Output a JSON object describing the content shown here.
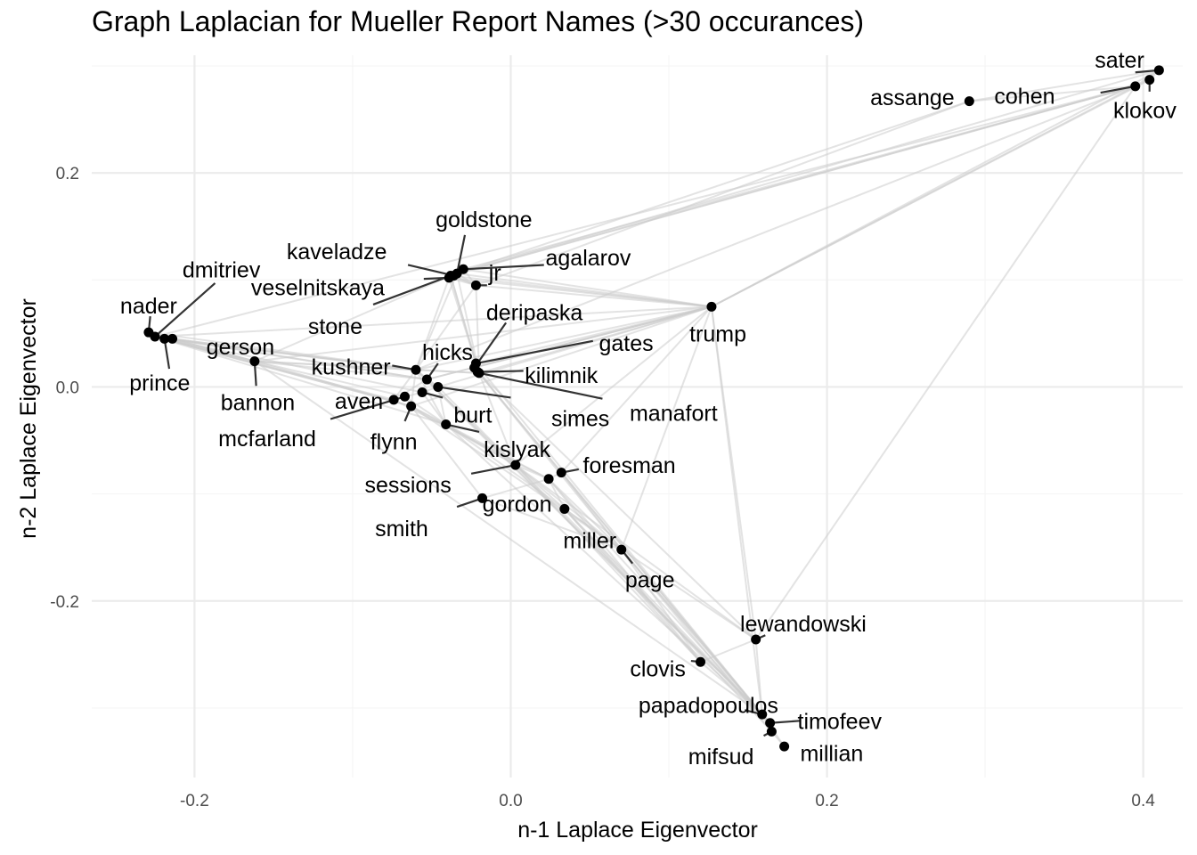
{
  "chart_data": {
    "type": "scatter",
    "title": "Graph Laplacian for Mueller Report Names (>30 occurances)",
    "xlabel": "n-1 Laplace Eigenvector",
    "ylabel": "n-2 Laplace Eigenvector",
    "xlim": [
      -0.265,
      0.425
    ],
    "ylim": [
      -0.365,
      0.31
    ],
    "x_ticks": [
      -0.2,
      0.0,
      0.2,
      0.4
    ],
    "x_tick_labels": [
      "-0.2",
      "0.0",
      "0.2",
      "0.4"
    ],
    "y_ticks": [
      -0.2,
      0.0,
      0.2
    ],
    "y_tick_labels": [
      "-0.2",
      "0.0",
      "0.2"
    ],
    "grid": true,
    "colors": {
      "point": "#000000",
      "edge": "#cccccc",
      "grid_major": "#ebebeb",
      "grid_minor": "#f5f5f5",
      "leader": "#333333"
    },
    "points": [
      {
        "name": "sater",
        "x": 0.41,
        "y": 0.296
      },
      {
        "name": "klokov",
        "x": 0.404,
        "y": 0.287
      },
      {
        "name": "cohen",
        "x": 0.395,
        "y": 0.281
      },
      {
        "name": "assange",
        "x": 0.29,
        "y": 0.267
      },
      {
        "name": "trump",
        "x": 0.127,
        "y": 0.075
      },
      {
        "name": "goldstone",
        "x": -0.034,
        "y": 0.106
      },
      {
        "name": "kaveladze",
        "x": -0.036,
        "y": 0.104
      },
      {
        "name": "agalarov",
        "x": -0.03,
        "y": 0.11
      },
      {
        "name": "veselnitskaya",
        "x": -0.039,
        "y": 0.102
      },
      {
        "name": "jr",
        "x": -0.022,
        "y": 0.095
      },
      {
        "name": "stone",
        "x": -0.038,
        "y": 0.104
      },
      {
        "name": "deripaska",
        "x": -0.023,
        "y": 0.018
      },
      {
        "name": "gates",
        "x": -0.022,
        "y": 0.022
      },
      {
        "name": "kilimnik",
        "x": -0.021,
        "y": 0.014
      },
      {
        "name": "manafort",
        "x": -0.02,
        "y": 0.013
      },
      {
        "name": "dmitriev",
        "x": -0.225,
        "y": 0.047
      },
      {
        "name": "nader",
        "x": -0.229,
        "y": 0.051
      },
      {
        "name": "prince",
        "x": -0.219,
        "y": 0.045
      },
      {
        "name": "gerson",
        "x": -0.214,
        "y": 0.045
      },
      {
        "name": "bannon",
        "x": -0.162,
        "y": 0.024
      },
      {
        "name": "kushner",
        "x": -0.06,
        "y": 0.016
      },
      {
        "name": "hicks",
        "x": -0.053,
        "y": 0.007
      },
      {
        "name": "simes",
        "x": -0.046,
        "y": 0.0
      },
      {
        "name": "burt",
        "x": -0.056,
        "y": -0.005
      },
      {
        "name": "aven",
        "x": -0.074,
        "y": -0.012
      },
      {
        "name": "mcfarland",
        "x": -0.067,
        "y": -0.009
      },
      {
        "name": "flynn",
        "x": -0.063,
        "y": -0.018
      },
      {
        "name": "kislyak",
        "x": -0.041,
        "y": -0.035
      },
      {
        "name": "sessions",
        "x": 0.003,
        "y": -0.073
      },
      {
        "name": "foresman",
        "x": 0.032,
        "y": -0.08
      },
      {
        "name": "gordon",
        "x": 0.024,
        "y": -0.086
      },
      {
        "name": "smith",
        "x": -0.018,
        "y": -0.104
      },
      {
        "name": "miller",
        "x": 0.034,
        "y": -0.114
      },
      {
        "name": "page",
        "x": 0.07,
        "y": -0.152
      },
      {
        "name": "lewandowski",
        "x": 0.155,
        "y": -0.236
      },
      {
        "name": "clovis",
        "x": 0.12,
        "y": -0.257
      },
      {
        "name": "papadopoulos",
        "x": 0.159,
        "y": -0.306
      },
      {
        "name": "timofeev",
        "x": 0.164,
        "y": -0.314
      },
      {
        "name": "mifsud",
        "x": 0.165,
        "y": -0.322
      },
      {
        "name": "millian",
        "x": 0.173,
        "y": -0.336
      }
    ],
    "edges": [
      [
        "nader",
        "dmitriev"
      ],
      [
        "nader",
        "prince"
      ],
      [
        "nader",
        "gerson"
      ],
      [
        "nader",
        "bannon"
      ],
      [
        "nader",
        "kushner"
      ],
      [
        "dmitriev",
        "prince"
      ],
      [
        "dmitriev",
        "gerson"
      ],
      [
        "dmitriev",
        "kushner"
      ],
      [
        "dmitriev",
        "aven"
      ],
      [
        "dmitriev",
        "trump"
      ],
      [
        "dmitriev",
        "cohen"
      ],
      [
        "dmitriev",
        "bannon"
      ],
      [
        "dmitriev",
        "flynn"
      ],
      [
        "dmitriev",
        "hicks"
      ],
      [
        "dmitriev",
        "kislyak"
      ],
      [
        "dmitriev",
        "burt"
      ],
      [
        "prince",
        "bannon"
      ],
      [
        "prince",
        "gerson"
      ],
      [
        "prince",
        "kushner"
      ],
      [
        "prince",
        "flynn"
      ],
      [
        "gerson",
        "kushner"
      ],
      [
        "gerson",
        "bannon"
      ],
      [
        "gerson",
        "hicks"
      ],
      [
        "bannon",
        "kushner"
      ],
      [
        "bannon",
        "flynn"
      ],
      [
        "bannon",
        "manafort"
      ],
      [
        "bannon",
        "trump"
      ],
      [
        "bannon",
        "papadopoulos"
      ],
      [
        "bannon",
        "hicks"
      ],
      [
        "bannon",
        "mcfarland"
      ],
      [
        "kushner",
        "hicks"
      ],
      [
        "kushner",
        "kislyak"
      ],
      [
        "kushner",
        "flynn"
      ],
      [
        "kushner",
        "trump"
      ],
      [
        "kushner",
        "manafort"
      ],
      [
        "kushner",
        "goldstone"
      ],
      [
        "kushner",
        "veselnitskaya"
      ],
      [
        "kushner",
        "jr"
      ],
      [
        "kushner",
        "simes"
      ],
      [
        "kushner",
        "sessions"
      ],
      [
        "kushner",
        "cohen"
      ],
      [
        "aven",
        "burt"
      ],
      [
        "aven",
        "mcfarland"
      ],
      [
        "aven",
        "kushner"
      ],
      [
        "aven",
        "hicks"
      ],
      [
        "aven",
        "gordon"
      ],
      [
        "flynn",
        "kislyak"
      ],
      [
        "flynn",
        "mcfarland"
      ],
      [
        "flynn",
        "trump"
      ],
      [
        "flynn",
        "sessions"
      ],
      [
        "flynn",
        "page"
      ],
      [
        "mcfarland",
        "kislyak"
      ],
      [
        "kislyak",
        "sessions"
      ],
      [
        "kislyak",
        "gordon"
      ],
      [
        "kislyak",
        "page"
      ],
      [
        "kislyak",
        "simes"
      ],
      [
        "kislyak",
        "papadopoulos"
      ],
      [
        "sessions",
        "gordon"
      ],
      [
        "sessions",
        "page"
      ],
      [
        "sessions",
        "papadopoulos"
      ],
      [
        "sessions",
        "clovis"
      ],
      [
        "sessions",
        "miller"
      ],
      [
        "sessions",
        "trump"
      ],
      [
        "sessions",
        "manafort"
      ],
      [
        "sessions",
        "simes"
      ],
      [
        "sessions",
        "lewandowski"
      ],
      [
        "gordon",
        "page"
      ],
      [
        "gordon",
        "smith"
      ],
      [
        "gordon",
        "foresman"
      ],
      [
        "gordon",
        "papadopoulos"
      ],
      [
        "gordon",
        "clovis"
      ],
      [
        "gordon",
        "miller"
      ],
      [
        "miller",
        "papadopoulos"
      ],
      [
        "miller",
        "page"
      ],
      [
        "miller",
        "clovis"
      ],
      [
        "miller",
        "mifsud"
      ],
      [
        "page",
        "papadopoulos"
      ],
      [
        "page",
        "clovis"
      ],
      [
        "page",
        "mifsud"
      ],
      [
        "page",
        "timofeev"
      ],
      [
        "page",
        "lewandowski"
      ],
      [
        "papadopoulos",
        "mifsud"
      ],
      [
        "papadopoulos",
        "timofeev"
      ],
      [
        "papadopoulos",
        "millian"
      ],
      [
        "papadopoulos",
        "clovis"
      ],
      [
        "papadopoulos",
        "lewandowski"
      ],
      [
        "mifsud",
        "timofeev"
      ],
      [
        "mifsud",
        "millian"
      ],
      [
        "clovis",
        "lewandowski"
      ],
      [
        "foresman",
        "papadopoulos"
      ],
      [
        "foresman",
        "page"
      ],
      [
        "foresman",
        "trump"
      ],
      [
        "foresman",
        "manafort"
      ],
      [
        "goldstone",
        "agalarov"
      ],
      [
        "goldstone",
        "kaveladze"
      ],
      [
        "goldstone",
        "veselnitskaya"
      ],
      [
        "goldstone",
        "jr"
      ],
      [
        "goldstone",
        "cohen"
      ],
      [
        "goldstone",
        "trump"
      ],
      [
        "goldstone",
        "manafort"
      ],
      [
        "goldstone",
        "sater"
      ],
      [
        "agalarov",
        "kaveladze"
      ],
      [
        "agalarov",
        "trump"
      ],
      [
        "agalarov",
        "cohen"
      ],
      [
        "agalarov",
        "jr"
      ],
      [
        "agalarov",
        "veselnitskaya"
      ],
      [
        "kaveladze",
        "veselnitskaya"
      ],
      [
        "kaveladze",
        "jr"
      ],
      [
        "veselnitskaya",
        "jr"
      ],
      [
        "veselnitskaya",
        "manafort"
      ],
      [
        "veselnitskaya",
        "trump"
      ],
      [
        "jr",
        "trump"
      ],
      [
        "jr",
        "manafort"
      ],
      [
        "jr",
        "stone"
      ],
      [
        "jr",
        "assange"
      ],
      [
        "stone",
        "manafort"
      ],
      [
        "stone",
        "trump"
      ],
      [
        "stone",
        "assange"
      ],
      [
        "stone",
        "gates"
      ],
      [
        "stone",
        "bannon"
      ],
      [
        "stone",
        "cohen"
      ],
      [
        "manafort",
        "gates"
      ],
      [
        "manafort",
        "kilimnik"
      ],
      [
        "manafort",
        "deripaska"
      ],
      [
        "manafort",
        "trump"
      ],
      [
        "manafort",
        "page"
      ],
      [
        "manafort",
        "papadopoulos"
      ],
      [
        "manafort",
        "lewandowski"
      ],
      [
        "gates",
        "kilimnik"
      ],
      [
        "gates",
        "deripaska"
      ],
      [
        "gates",
        "trump"
      ],
      [
        "gates",
        "papadopoulos"
      ],
      [
        "kilimnik",
        "deripaska"
      ],
      [
        "deripaska",
        "trump"
      ],
      [
        "trump",
        "cohen"
      ],
      [
        "trump",
        "sater"
      ],
      [
        "trump",
        "klokov"
      ],
      [
        "trump",
        "lewandowski"
      ],
      [
        "trump",
        "papadopoulos"
      ],
      [
        "trump",
        "page"
      ],
      [
        "trump",
        "hicks"
      ],
      [
        "cohen",
        "sater"
      ],
      [
        "cohen",
        "klokov"
      ],
      [
        "sater",
        "klokov"
      ],
      [
        "assange",
        "sater"
      ],
      [
        "assange",
        "cohen"
      ],
      [
        "lewandowski",
        "cohen"
      ],
      [
        "hicks",
        "simes"
      ],
      [
        "hicks",
        "trump"
      ],
      [
        "hicks",
        "papadopoulos"
      ],
      [
        "burt",
        "simes"
      ],
      [
        "burt",
        "kislyak"
      ],
      [
        "simes",
        "trump"
      ],
      [
        "smith",
        "flynn"
      ],
      [
        "smith",
        "page"
      ],
      [
        "kushner",
        "papadopoulos"
      ]
    ],
    "labels": [
      {
        "name": "sater",
        "x": 0.385,
        "y": 0.306,
        "anchor": "middle"
      },
      {
        "name": "klokov",
        "x": 0.401,
        "y": 0.259,
        "anchor": "middle"
      },
      {
        "name": "cohen",
        "x": 0.325,
        "y": 0.272,
        "anchor": "middle"
      },
      {
        "name": "assange",
        "x": 0.254,
        "y": 0.271,
        "anchor": "middle"
      },
      {
        "name": "trump",
        "x": 0.131,
        "y": 0.05,
        "anchor": "middle"
      },
      {
        "name": "goldstone",
        "x": -0.017,
        "y": 0.157,
        "anchor": "middle"
      },
      {
        "name": "kaveladze",
        "x": -0.11,
        "y": 0.127,
        "anchor": "middle"
      },
      {
        "name": "agalarov",
        "x": 0.049,
        "y": 0.121,
        "anchor": "middle"
      },
      {
        "name": "veselnitskaya",
        "x": -0.122,
        "y": 0.093,
        "anchor": "middle"
      },
      {
        "name": "jr",
        "x": -0.01,
        "y": 0.107,
        "anchor": "middle"
      },
      {
        "name": "stone",
        "x": -0.111,
        "y": 0.057,
        "anchor": "middle"
      },
      {
        "name": "deripaska",
        "x": 0.015,
        "y": 0.07,
        "anchor": "middle"
      },
      {
        "name": "gates",
        "x": 0.073,
        "y": 0.041,
        "anchor": "middle"
      },
      {
        "name": "kilimnik",
        "x": 0.032,
        "y": 0.011,
        "anchor": "middle"
      },
      {
        "name": "manafort",
        "x": 0.103,
        "y": -0.024,
        "anchor": "middle"
      },
      {
        "name": "dmitriev",
        "x": -0.183,
        "y": 0.11,
        "anchor": "middle"
      },
      {
        "name": "nader",
        "x": -0.229,
        "y": 0.076,
        "anchor": "middle"
      },
      {
        "name": "prince",
        "x": -0.222,
        "y": 0.004,
        "anchor": "middle"
      },
      {
        "name": "gerson",
        "x": -0.171,
        "y": 0.038,
        "anchor": "middle"
      },
      {
        "name": "bannon",
        "x": -0.16,
        "y": -0.014,
        "anchor": "middle"
      },
      {
        "name": "kushner",
        "x": -0.101,
        "y": 0.019,
        "anchor": "middle"
      },
      {
        "name": "hicks",
        "x": -0.04,
        "y": 0.033,
        "anchor": "middle"
      },
      {
        "name": "simes",
        "x": 0.044,
        "y": -0.029,
        "anchor": "middle"
      },
      {
        "name": "burt",
        "x": -0.024,
        "y": -0.026,
        "anchor": "middle"
      },
      {
        "name": "aven",
        "x": -0.096,
        "y": -0.013,
        "anchor": "middle"
      },
      {
        "name": "mcfarland",
        "x": -0.154,
        "y": -0.048,
        "anchor": "middle"
      },
      {
        "name": "flynn",
        "x": -0.074,
        "y": -0.051,
        "anchor": "middle"
      },
      {
        "name": "kislyak",
        "x": 0.004,
        "y": -0.058,
        "anchor": "middle"
      },
      {
        "name": "sessions",
        "x": -0.065,
        "y": -0.091,
        "anchor": "middle"
      },
      {
        "name": "foresman",
        "x": 0.075,
        "y": -0.073,
        "anchor": "middle"
      },
      {
        "name": "gordon",
        "x": 0.004,
        "y": -0.109,
        "anchor": "middle"
      },
      {
        "name": "smith",
        "x": -0.069,
        "y": -0.132,
        "anchor": "middle"
      },
      {
        "name": "miller",
        "x": 0.05,
        "y": -0.143,
        "anchor": "middle"
      },
      {
        "name": "page",
        "x": 0.088,
        "y": -0.18,
        "anchor": "middle"
      },
      {
        "name": "lewandowski",
        "x": 0.185,
        "y": -0.221,
        "anchor": "middle"
      },
      {
        "name": "clovis",
        "x": 0.093,
        "y": -0.263,
        "anchor": "middle"
      },
      {
        "name": "papadopoulos",
        "x": 0.125,
        "y": -0.297,
        "anchor": "middle"
      },
      {
        "name": "timofeev",
        "x": 0.208,
        "y": -0.312,
        "anchor": "middle"
      },
      {
        "name": "mifsud",
        "x": 0.133,
        "y": -0.345,
        "anchor": "middle"
      },
      {
        "name": "millian",
        "x": 0.203,
        "y": -0.342,
        "anchor": "middle"
      }
    ],
    "leaders": [
      [
        "sater",
        0.395,
        0.294
      ],
      [
        "klokov",
        0.404,
        0.276
      ],
      [
        "cohen",
        0.373,
        0.275
      ],
      [
        "goldstone",
        -0.029,
        0.142
      ],
      [
        "kaveladze",
        -0.065,
        0.114
      ],
      [
        "agalarov",
        0.021,
        0.114
      ],
      [
        "veselnitskaya",
        -0.055,
        0.101
      ],
      [
        "jr",
        -0.015,
        0.095
      ],
      [
        "stone",
        -0.087,
        0.077
      ],
      [
        "deripaska",
        -0.003,
        0.06
      ],
      [
        "gates",
        0.052,
        0.043
      ],
      [
        "kilimnik",
        0.008,
        0.015
      ],
      [
        "manafort",
        0.058,
        -0.011
      ],
      [
        "dmitriev",
        -0.187,
        0.097
      ],
      [
        "nader",
        -0.228,
        0.066
      ],
      [
        "prince",
        -0.216,
        0.017
      ],
      [
        "bannon",
        -0.161,
        0.001
      ],
      [
        "kushner",
        -0.075,
        0.02
      ],
      [
        "hicks",
        -0.046,
        0.022
      ],
      [
        "simes",
        0.0,
        -0.01
      ],
      [
        "burt",
        -0.043,
        -0.01
      ],
      [
        "mcfarland",
        -0.114,
        -0.03
      ],
      [
        "flynn",
        -0.067,
        -0.032
      ],
      [
        "kislyak",
        -0.02,
        -0.042
      ],
      [
        "sessions",
        -0.025,
        -0.081
      ],
      [
        "foresman",
        0.043,
        -0.077
      ],
      [
        "smith",
        -0.034,
        -0.112
      ],
      [
        "page",
        0.077,
        -0.165
      ],
      [
        "lewandowski",
        0.161,
        -0.232
      ],
      [
        "clovis",
        0.114,
        -0.256
      ],
      [
        "papadopoulos",
        0.148,
        -0.302
      ],
      [
        "timofeev",
        0.183,
        -0.312
      ],
      [
        "mifsud",
        0.16,
        -0.326
      ]
    ]
  }
}
